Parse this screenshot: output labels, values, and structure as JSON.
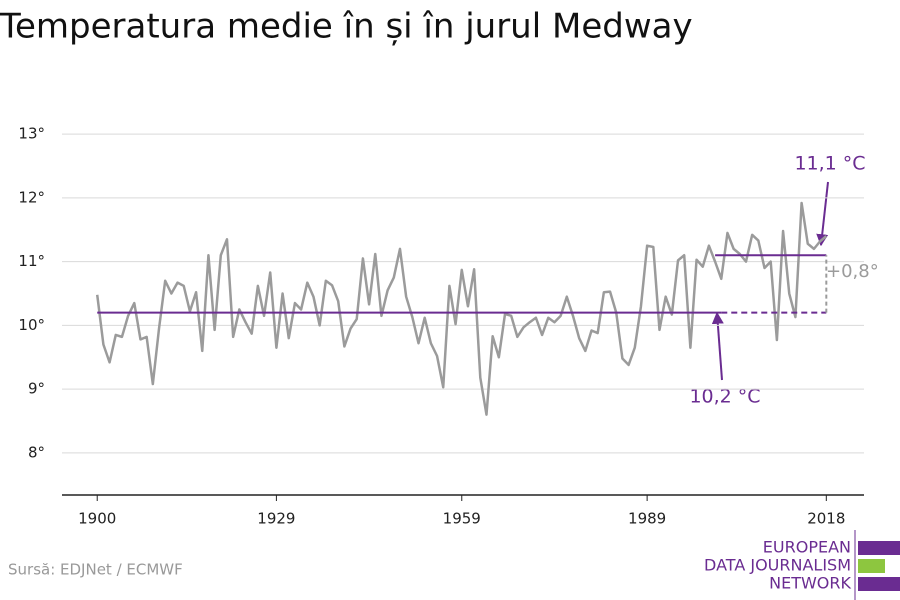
{
  "chart_data": {
    "type": "line",
    "title": "Temperatura medie în și în jurul Medway",
    "source": "Sursă: EDJNet / ECMWF",
    "logo": [
      "EUROPEAN",
      "DATA JOURNALISM",
      "NETWORK"
    ],
    "x": [
      1900,
      1901,
      1902,
      1903,
      1904,
      1905,
      1906,
      1907,
      1908,
      1909,
      1910,
      1911,
      1912,
      1913,
      1914,
      1915,
      1916,
      1917,
      1918,
      1919,
      1920,
      1921,
      1922,
      1923,
      1924,
      1925,
      1926,
      1927,
      1928,
      1929,
      1930,
      1931,
      1932,
      1933,
      1934,
      1935,
      1936,
      1937,
      1938,
      1939,
      1940,
      1941,
      1942,
      1943,
      1944,
      1945,
      1946,
      1947,
      1948,
      1949,
      1950,
      1951,
      1952,
      1953,
      1954,
      1955,
      1956,
      1957,
      1958,
      1959,
      1960,
      1961,
      1962,
      1963,
      1964,
      1965,
      1966,
      1967,
      1968,
      1969,
      1970,
      1971,
      1972,
      1973,
      1974,
      1975,
      1976,
      1977,
      1978,
      1979,
      1980,
      1981,
      1982,
      1983,
      1984,
      1985,
      1986,
      1987,
      1988,
      1989,
      1990,
      1991,
      1992,
      1993,
      1994,
      1995,
      1996,
      1997,
      1998,
      1999,
      2000,
      2001,
      2002,
      2003,
      2004,
      2005,
      2006,
      2007,
      2008,
      2009,
      2010,
      2011,
      2012,
      2013,
      2014,
      2015,
      2016,
      2017,
      2018
    ],
    "series": [
      {
        "color": "#9b9b9b",
        "values": [
          10.48,
          9.7,
          9.42,
          9.85,
          9.82,
          10.15,
          10.35,
          9.78,
          9.82,
          9.08,
          9.95,
          10.7,
          10.5,
          10.67,
          10.62,
          10.22,
          10.52,
          9.6,
          11.1,
          9.93,
          11.1,
          11.35,
          9.82,
          10.25,
          10.05,
          9.87,
          10.62,
          10.15,
          10.83,
          9.65,
          10.5,
          9.8,
          10.35,
          10.25,
          10.67,
          10.45,
          10.0,
          10.7,
          10.63,
          10.38,
          9.67,
          9.95,
          10.1,
          11.05,
          10.33,
          11.12,
          10.15,
          10.55,
          10.75,
          11.2,
          10.45,
          10.13,
          9.72,
          10.12,
          9.72,
          9.52,
          9.03,
          10.62,
          10.02,
          10.87,
          10.3,
          10.88,
          9.18,
          8.6,
          9.83,
          9.5,
          10.18,
          10.15,
          9.82,
          9.97,
          10.05,
          10.12,
          9.85,
          10.12,
          10.05,
          10.15,
          10.45,
          10.15,
          9.8,
          9.6,
          9.92,
          9.88,
          10.52,
          10.53,
          10.2,
          9.48,
          9.38,
          9.65,
          10.3,
          11.25,
          11.23,
          9.93,
          10.45,
          10.17,
          11.02,
          11.1,
          9.65,
          11.03,
          10.92,
          11.25,
          11.0,
          10.73,
          11.45,
          11.2,
          11.12,
          11.0,
          11.42,
          11.33,
          10.9,
          11.0,
          9.77,
          11.48,
          10.5,
          10.13,
          11.92,
          11.28,
          11.2,
          11.32,
          11.4
        ]
      }
    ],
    "reference_lines": [
      {
        "value": 10.2,
        "label": "10,2 °C",
        "x_range": [
          1900,
          2001
        ],
        "color": "#6a2c91"
      },
      {
        "value": 11.1,
        "label": "11,1 °C",
        "x_range": [
          2000,
          2018
        ],
        "color": "#6a2c91"
      }
    ],
    "difference_label": "+0,8°",
    "xlim": [
      1894.3,
      2024.1
    ],
    "xticks": [
      1900,
      1929,
      1959,
      1989,
      2018
    ],
    "ylim": [
      7.34,
      13.4
    ],
    "yticks": [
      {
        "value": 8,
        "label": "8°"
      },
      {
        "value": 9,
        "label": "9°"
      },
      {
        "value": 10,
        "label": "10°"
      },
      {
        "value": 11,
        "label": "11°"
      },
      {
        "value": 12,
        "label": "12°"
      },
      {
        "value": 13,
        "label": "13°"
      }
    ],
    "grid": true
  }
}
